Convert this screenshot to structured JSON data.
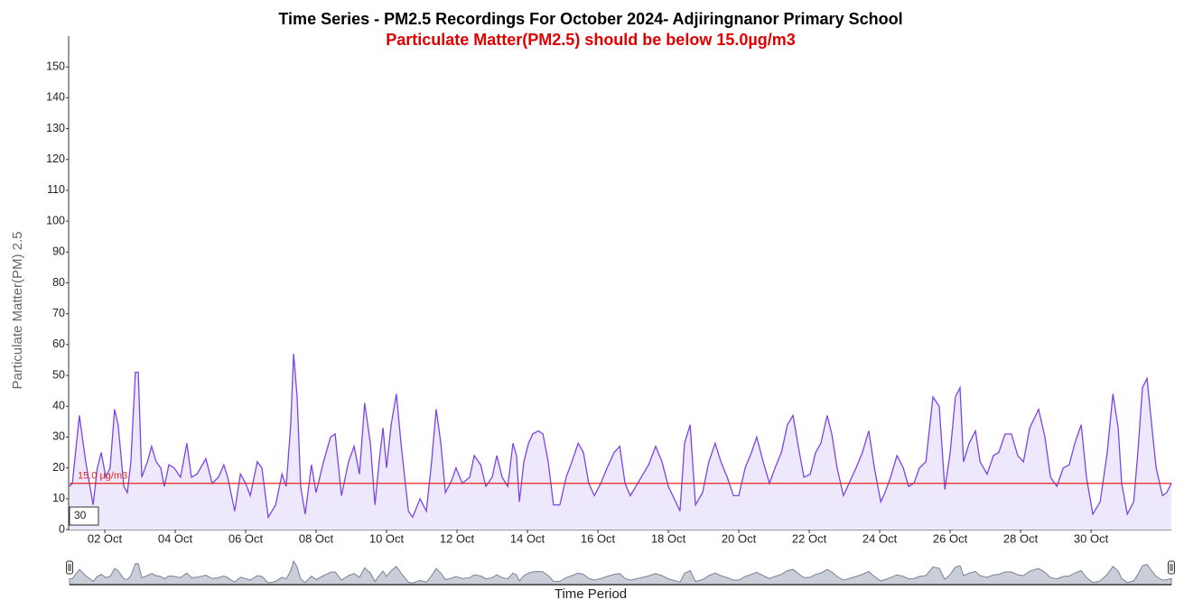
{
  "chart_data": {
    "type": "area",
    "title": "Time Series - PM2.5 Recordings For October 2024- Adjiringnanor Primary School",
    "subtitle": "Particulate Matter(PM2.5) should be below 15.0µg/m3",
    "y_label": "Particulate Matter(PM) 2.5",
    "x_label": "Time Period",
    "zoom_input": "30",
    "ylim": [
      0,
      160
    ],
    "yticks": [
      0,
      10,
      20,
      30,
      40,
      50,
      60,
      70,
      80,
      90,
      100,
      110,
      120,
      130,
      140,
      150
    ],
    "xlim": [
      1,
      32.28
    ],
    "xticks": [
      {
        "value": 2,
        "label": "02 Oct"
      },
      {
        "value": 4,
        "label": "04 Oct"
      },
      {
        "value": 6,
        "label": "06 Oct"
      },
      {
        "value": 8,
        "label": "08 Oct"
      },
      {
        "value": 10,
        "label": "10 Oct"
      },
      {
        "value": 12,
        "label": "12 Oct"
      },
      {
        "value": 14,
        "label": "14 Oct"
      },
      {
        "value": 16,
        "label": "16 Oct"
      },
      {
        "value": 18,
        "label": "18 Oct"
      },
      {
        "value": 20,
        "label": "20 Oct"
      },
      {
        "value": 22,
        "label": "22 Oct"
      },
      {
        "value": 24,
        "label": "24 Oct"
      },
      {
        "value": 26,
        "label": "26 Oct"
      },
      {
        "value": 28,
        "label": "28 Oct"
      },
      {
        "value": 30,
        "label": "30 Oct"
      }
    ],
    "threshold": {
      "value": 15,
      "label": "15.0 μg/m3",
      "color": "#e8231c"
    },
    "series": [
      {
        "color": "#7c44e6",
        "fill": "#eee8fc",
        "x": [
          1.0,
          1.08,
          1.28,
          1.46,
          1.67,
          1.79,
          1.9,
          2.03,
          2.15,
          2.28,
          2.38,
          2.54,
          2.64,
          2.74,
          2.87,
          2.95,
          3.05,
          3.21,
          3.33,
          3.46,
          3.59,
          3.69,
          3.82,
          3.97,
          4.15,
          4.33,
          4.46,
          4.62,
          4.87,
          5.05,
          5.23,
          5.38,
          5.49,
          5.69,
          5.85,
          6.0,
          6.13,
          6.33,
          6.46,
          6.64,
          6.85,
          7.03,
          7.15,
          7.28,
          7.36,
          7.46,
          7.56,
          7.69,
          7.87,
          8.0,
          8.21,
          8.41,
          8.54,
          8.72,
          8.92,
          9.08,
          9.23,
          9.38,
          9.54,
          9.67,
          9.79,
          9.9,
          10.0,
          10.13,
          10.28,
          10.41,
          10.62,
          10.74,
          10.95,
          11.13,
          11.28,
          11.41,
          11.54,
          11.67,
          11.85,
          11.97,
          12.15,
          12.36,
          12.49,
          12.67,
          12.82,
          13.0,
          13.13,
          13.28,
          13.44,
          13.59,
          13.69,
          13.77,
          13.9,
          14.03,
          14.15,
          14.31,
          14.44,
          14.59,
          14.74,
          14.92,
          15.1,
          15.26,
          15.44,
          15.59,
          15.74,
          15.9,
          16.08,
          16.26,
          16.46,
          16.62,
          16.77,
          16.92,
          17.08,
          17.23,
          17.44,
          17.64,
          17.82,
          18.0,
          18.21,
          18.33,
          18.46,
          18.62,
          18.77,
          18.97,
          19.15,
          19.33,
          19.49,
          19.67,
          19.85,
          20.0,
          20.18,
          20.36,
          20.51,
          20.69,
          20.87,
          21.03,
          21.21,
          21.38,
          21.54,
          21.72,
          21.85,
          22.03,
          22.18,
          22.33,
          22.51,
          22.64,
          22.79,
          22.97,
          23.13,
          23.33,
          23.51,
          23.69,
          23.85,
          24.03,
          24.15,
          24.31,
          24.49,
          24.67,
          24.82,
          24.97,
          25.13,
          25.31,
          25.51,
          25.69,
          25.85,
          26.0,
          26.15,
          26.28,
          26.38,
          26.54,
          26.72,
          26.85,
          27.05,
          27.23,
          27.38,
          27.56,
          27.74,
          27.92,
          28.08,
          28.26,
          28.51,
          28.69,
          28.85,
          29.03,
          29.21,
          29.38,
          29.54,
          29.72,
          29.87,
          30.05,
          30.26,
          30.46,
          30.62,
          30.77,
          30.87,
          31.03,
          31.21,
          31.33,
          31.46,
          31.59,
          31.72,
          31.85,
          32.03,
          32.15,
          32.28
        ],
        "values": [
          14,
          15,
          37,
          22,
          8,
          20,
          25,
          17,
          20,
          39,
          34,
          14,
          12,
          22,
          51,
          51,
          17,
          22,
          27,
          22,
          20,
          14,
          21,
          20,
          17,
          28,
          17,
          18,
          23,
          15,
          17,
          21,
          17,
          6,
          18,
          15,
          11,
          22,
          20,
          4,
          8,
          18,
          14,
          34,
          57,
          43,
          14,
          5,
          21,
          12,
          22,
          30,
          31,
          11,
          22,
          27,
          18,
          41,
          28,
          8,
          22,
          33,
          20,
          34,
          44,
          28,
          6,
          4,
          10,
          6,
          22,
          39,
          28,
          12,
          16,
          20,
          15,
          17,
          24,
          21,
          14,
          17,
          24,
          17,
          14,
          28,
          24,
          9,
          22,
          28,
          31,
          32,
          31,
          22,
          8,
          8,
          17,
          22,
          28,
          25,
          15,
          11,
          15,
          20,
          25,
          27,
          15,
          11,
          14,
          17,
          21,
          27,
          22,
          14,
          9,
          6,
          28,
          34,
          8,
          12,
          22,
          28,
          22,
          17,
          11,
          11,
          20,
          25,
          30,
          22,
          15,
          20,
          25,
          34,
          37,
          25,
          17,
          18,
          25,
          28,
          37,
          31,
          20,
          11,
          15,
          20,
          25,
          32,
          20,
          9,
          12,
          17,
          24,
          20,
          14,
          15,
          20,
          22,
          43,
          40,
          13,
          25,
          43,
          46,
          22,
          28,
          32,
          22,
          18,
          24,
          25,
          31,
          31,
          24,
          22,
          33,
          39,
          30,
          17,
          14,
          20,
          21,
          28,
          34,
          17,
          5,
          9,
          25,
          44,
          33,
          15,
          5,
          9,
          25,
          46,
          49,
          34,
          20,
          11,
          12,
          15
        ]
      }
    ]
  }
}
